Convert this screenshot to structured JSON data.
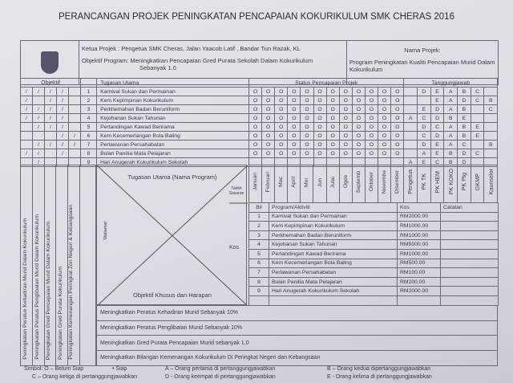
{
  "title": "PERANCANGAN PROJEK PENINGKATAN PENCAPAIAN KOKURIKULUM SMK CHERAS 2016",
  "header": {
    "ketua": "Ketua Projek : Pengetua SMK Cheras, Jalan Yaacob Latif , Bandar Tun Razak, KL",
    "objektif_program": "Objektif Program: Meningkatkan Pencapaian Gred Purata Sekolah Dalam Kokurikulum",
    "objektif_program_2": "Sebanyak 1.0",
    "nama_projek_label": "Nama Projek:",
    "nama_projek": "Program Peningkatan  Kualiti Pencapaian Murid Dalam Kokurikulum"
  },
  "columns": {
    "objektif": "Objektif",
    "tugasan": "Tugasan Utama",
    "status": "Status Pencapaian Projek",
    "tanggungjawab": "Tanggungjawab"
  },
  "rows": [
    {
      "bil": "1",
      "task": "Karnival Sukan dan Permainan",
      "obj": [
        "/",
        "/",
        "/",
        "/",
        ""
      ],
      "status": [
        "O",
        "O",
        "O",
        "O",
        "O",
        "O",
        "O",
        "O",
        "O",
        "O",
        "O",
        "O"
      ],
      "resp": [
        "",
        "D",
        "E",
        "A",
        "B",
        "C",
        ""
      ]
    },
    {
      "bil": "2",
      "task": "Kem Kepimpinan  Kokurikulum",
      "obj": [
        "/",
        "",
        "/",
        "/",
        ""
      ],
      "status": [
        "O",
        "O",
        "O",
        "O",
        "O",
        "O",
        "O",
        "O",
        "O",
        "O",
        "O",
        "O"
      ],
      "resp": [
        "",
        "",
        "E",
        "A",
        "D",
        "C",
        "B"
      ]
    },
    {
      "bil": "3",
      "task": "Perkhemahan Badan Beruniform",
      "obj": [
        "/",
        "/",
        "/",
        "/",
        ""
      ],
      "status": [
        "O",
        "O",
        "O",
        "O",
        "O",
        "O",
        "O",
        "O",
        "O",
        "O",
        "O",
        "O"
      ],
      "resp": [
        "",
        "E",
        "D",
        "A",
        "B",
        "",
        "C"
      ]
    },
    {
      "bil": "4",
      "task": "Kejohanan Sukan Tahunan",
      "obj": [
        "/",
        "/",
        "/",
        "/",
        ""
      ],
      "status": [
        "O",
        "O",
        "O",
        "O",
        "O",
        "O",
        "O",
        "O",
        "O",
        "O",
        "O",
        "O"
      ],
      "resp": [
        "A",
        "C",
        "D",
        "B",
        "E",
        "",
        ""
      ]
    },
    {
      "bil": "5",
      "task": "Pertandingan Kawad Berirama",
      "obj": [
        "",
        "/",
        "/",
        "/",
        ""
      ],
      "status": [
        "O",
        "O",
        "O",
        "O",
        "O",
        "O",
        "O",
        "O",
        "O",
        "O",
        "O",
        "O"
      ],
      "resp": [
        "",
        "D",
        "C",
        "A",
        "B",
        "E",
        ""
      ]
    },
    {
      "bil": "6",
      "task": "Kem Kecemerlangan Bola Baling",
      "obj": [
        "",
        "",
        "",
        "/",
        "/"
      ],
      "status": [
        "O",
        "O",
        "O",
        "O",
        "O",
        "O",
        "O",
        "O",
        "O",
        "O",
        "O",
        "O"
      ],
      "resp": [
        "",
        "C",
        "D",
        "A",
        "B",
        "E",
        ""
      ]
    },
    {
      "bil": "7",
      "task": "Perlawanan Persahabatan",
      "obj": [
        "",
        "/",
        "/",
        "/",
        "/"
      ],
      "status": [
        "O",
        "O",
        "O",
        "O",
        "O",
        "O",
        "O",
        "O",
        "O",
        "O",
        "O",
        "O"
      ],
      "resp": [
        "",
        "D",
        "E",
        "A",
        "C",
        "",
        "B"
      ]
    },
    {
      "bil": "8",
      "task": "Bulan Panitia Mata Pelajaran",
      "obj": [
        "/",
        "/",
        "",
        "/",
        ""
      ],
      "status": [
        "O",
        "O",
        "O",
        "O",
        "O",
        "O",
        "O",
        "O",
        "O",
        "O",
        "O",
        "O"
      ],
      "resp": [
        "",
        "A",
        "E",
        "B",
        "D",
        "C",
        ""
      ]
    },
    {
      "bil": "9",
      "task": "Hari Anugerah Kokurikulum Sekolah",
      "obj": [
        "",
        "/",
        "",
        "",
        ""
      ],
      "status": [
        "",
        "",
        "",
        "",
        "",
        "",
        "",
        "",
        "",
        "",
        "",
        ""
      ],
      "resp": [
        "A",
        "E",
        "C",
        "B",
        "D",
        "",
        ""
      ]
    }
  ],
  "objective_labels": [
    "Peningkatan  Peratus Kehadiran  Murid Dalam Kokurikulum",
    "Peningkatan  Peratus Penglibatan  Murid Dalam Kokurikulum",
    "Peningkatan  Gred Pencapaian  Murid Dalam Kokurikulum",
    "Peningkatan  Gred Purata Kokurikulum",
    "Peningkatan  Kemenangan  Peringkat  Zon Negeri & Kebangsaan"
  ],
  "xmatrix": {
    "top": "Tugasan Utama (Nama Program)",
    "tarikh": "Tarikh Sasaran",
    "left": "Matlamat",
    "right": "Kos",
    "bottom": "Objektif Khusus dan Harapan"
  },
  "months": [
    "Januari",
    "Februari",
    "Mac",
    "April",
    "Mei",
    "Jun",
    "Julai",
    "Ogos",
    "Septemb",
    "Oktober",
    "Novembe",
    "Disember"
  ],
  "roles": [
    "Pengetua",
    "PK TK",
    "PK HEM",
    "PK KOKO",
    "PK Ptg",
    "GKMP",
    "Kaunselor"
  ],
  "budget": {
    "headers": [
      "Bil",
      "Program/Aktiviti",
      "Kos",
      "Catatan"
    ],
    "rows": [
      {
        "bil": "1",
        "program": "Karnival Sukan dan Permainan",
        "kos": "RM2000.00"
      },
      {
        "bil": "2",
        "program": "Kem Kepimpinan  Kokurikulum",
        "kos": "RM1000.00"
      },
      {
        "bil": "3",
        "program": "Perkhemahan Badan Beruniform",
        "kos": "RM1000.00"
      },
      {
        "bil": "4",
        "program": "Kejohanan Sukan Tahunan",
        "kos": "RM5000.00"
      },
      {
        "bil": "5",
        "program": "Pertandingan Kawad Berirama",
        "kos": "RM1000.00"
      },
      {
        "bil": "6",
        "program": "Kem Kecemerlangan Bola Baling",
        "kos": "RM500.00"
      },
      {
        "bil": "7",
        "program": "Perlawanan Persahabatan",
        "kos": "RM100.00"
      },
      {
        "bil": "8",
        "program": "Bulan Panitia Mata Pelajaran",
        "kos": "RM200.00"
      },
      {
        "bil": "9",
        "program": "Hari Anugerah Kokurikulum Sekolah",
        "kos": "RM2000.00"
      }
    ]
  },
  "objectives": [
    "Meningkatkan  Peratus Kehadiran Murid Sebanyak 10%",
    "Meningkatkan  Peratus Penglibatan Murid Sebanyak 10%",
    "Meningkatkan  Gred Purata Pencapaian Murid  sebanyak 1.0",
    "Meningkatkan Bilangan Kemenangan Kokurikulum Di Peringkat Negeri dan Kebangsaan"
  ],
  "legend": {
    "simbol": "Simbol: O – Belum Siap",
    "siap": "• Siap",
    "a": "A – Orang pertama di pertanggungjawabkan",
    "b": "B – Orang kedua dipertanggungjawabkan",
    "c": "C – Orang ketiga di pertanggungjawabkan",
    "d": "D - Orang keempat di pertanggungjawabkan",
    "e": "E - Orang kelima di pertanggungjawabkan"
  }
}
